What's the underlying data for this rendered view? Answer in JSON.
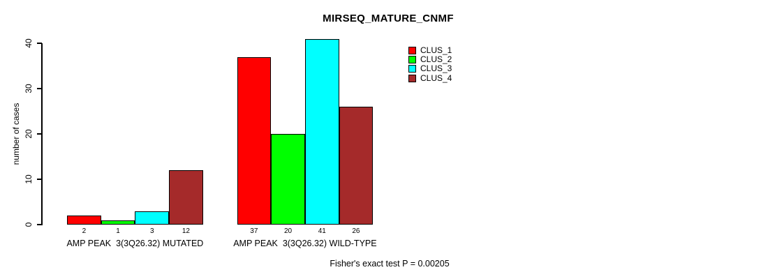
{
  "title": "MIRSEQ_MATURE_CNMF",
  "y_axis": {
    "label": "number of cases",
    "ticks": [
      0,
      10,
      20,
      30,
      40
    ]
  },
  "legend": [
    {
      "label": "CLUS_1",
      "color": "#FF0000"
    },
    {
      "label": "CLUS_2",
      "color": "#00FF00"
    },
    {
      "label": "CLUS_3",
      "color": "#00FFFF"
    },
    {
      "label": "CLUS_4",
      "color": "#A52A2A"
    }
  ],
  "footer": "Fisher's exact test P = 0.00205",
  "chart_data": {
    "type": "bar",
    "title": "MIRSEQ_MATURE_CNMF",
    "xlabel": "",
    "ylabel": "number of cases",
    "ylim": [
      0,
      41
    ],
    "yticks": [
      0,
      10,
      20,
      30,
      40
    ],
    "grid": false,
    "legend_position": "top-right",
    "grouped": true,
    "categories": [
      "AMP PEAK  3(3Q26.32) MUTATED",
      "AMP PEAK  3(3Q26.32) WILD-TYPE"
    ],
    "series": [
      {
        "name": "CLUS_1",
        "color": "#FF0000",
        "values": [
          2,
          37
        ]
      },
      {
        "name": "CLUS_2",
        "color": "#00FF00",
        "values": [
          1,
          20
        ]
      },
      {
        "name": "CLUS_3",
        "color": "#00FFFF",
        "values": [
          3,
          41
        ]
      },
      {
        "name": "CLUS_4",
        "color": "#A52A2A",
        "values": [
          12,
          26
        ]
      }
    ],
    "bar_value_labels": [
      [
        2,
        1,
        3,
        12
      ],
      [
        37,
        20,
        41,
        26
      ]
    ],
    "annotation": "Fisher's exact test P = 0.00205"
  }
}
